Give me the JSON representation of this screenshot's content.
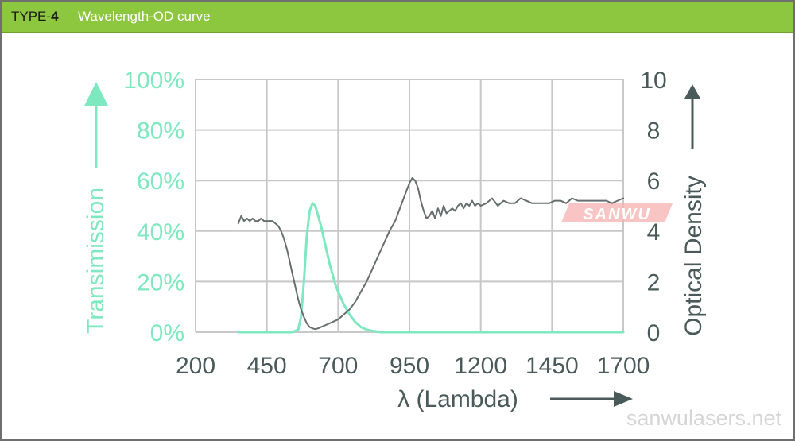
{
  "header": {
    "type_prefix": "TYPE-",
    "type_number": "4",
    "title": "Wavelength-OD curve"
  },
  "chart_data": {
    "type": "line",
    "xlabel": "λ (Lambda)",
    "ylabel_left": "Transimission",
    "ylabel_right": "Optical Density",
    "x_ticks": [
      "200",
      "450",
      "700",
      "950",
      "1200",
      "1450",
      "1700"
    ],
    "y_left_ticks": [
      "0%",
      "20%",
      "40%",
      "60%",
      "80%",
      "100%"
    ],
    "y_right_ticks": [
      "0",
      "2",
      "4",
      "6",
      "8",
      "10"
    ],
    "xlim": [
      200,
      1700
    ],
    "ylim_left": [
      0,
      100
    ],
    "ylim_right": [
      0,
      10
    ],
    "grid": true,
    "colors": {
      "transmission": "#7ee8c0",
      "od": "#666e6e",
      "grid": "#c8c8c8",
      "axis_text_left": "#7ee8c0",
      "axis_text_right": "#4a5a5a",
      "x_text": "#4a5a5a"
    },
    "series": [
      {
        "axis": "left",
        "x": [
          350,
          380,
          400,
          420,
          440,
          460,
          480,
          500,
          520,
          540,
          560,
          570,
          580,
          590,
          600,
          610,
          620,
          630,
          640,
          650,
          660,
          670,
          680,
          690,
          700,
          720,
          740,
          760,
          780,
          800,
          820,
          850,
          900,
          1000,
          1200,
          1400,
          1700
        ],
        "values": [
          0,
          0,
          0,
          0,
          0,
          0,
          0,
          0,
          0,
          0,
          1,
          6,
          20,
          38,
          48,
          51,
          50,
          46,
          42,
          37,
          32,
          27,
          23,
          19,
          16,
          11,
          7,
          4,
          2,
          1,
          0.5,
          0,
          0,
          0,
          0,
          0,
          0
        ]
      },
      {
        "axis": "right",
        "x": [
          350,
          360,
          370,
          380,
          390,
          400,
          410,
          420,
          430,
          440,
          450,
          460,
          470,
          480,
          490,
          500,
          510,
          520,
          530,
          540,
          550,
          560,
          570,
          580,
          590,
          600,
          610,
          620,
          630,
          640,
          650,
          660,
          670,
          680,
          690,
          700,
          720,
          740,
          760,
          780,
          800,
          820,
          840,
          860,
          880,
          900,
          910,
          920,
          930,
          940,
          950,
          960,
          970,
          980,
          990,
          1000,
          1010,
          1020,
          1030,
          1040,
          1050,
          1060,
          1070,
          1080,
          1090,
          1100,
          1110,
          1120,
          1130,
          1140,
          1150,
          1160,
          1170,
          1180,
          1190,
          1200,
          1220,
          1240,
          1260,
          1280,
          1300,
          1320,
          1340,
          1360,
          1380,
          1400,
          1420,
          1440,
          1460,
          1480,
          1500,
          1520,
          1540,
          1560,
          1580,
          1600,
          1620,
          1640,
          1660,
          1680,
          1700
        ],
        "values": [
          4.3,
          4.6,
          4.4,
          4.5,
          4.4,
          4.5,
          4.4,
          4.4,
          4.5,
          4.4,
          4.4,
          4.4,
          4.4,
          4.3,
          4.2,
          4.0,
          3.7,
          3.3,
          2.8,
          2.3,
          1.8,
          1.3,
          0.9,
          0.6,
          0.35,
          0.2,
          0.15,
          0.12,
          0.15,
          0.2,
          0.25,
          0.3,
          0.35,
          0.4,
          0.45,
          0.5,
          0.7,
          0.9,
          1.2,
          1.6,
          2.0,
          2.5,
          3.0,
          3.5,
          4.0,
          4.4,
          4.7,
          5.0,
          5.3,
          5.6,
          5.9,
          6.1,
          6.0,
          5.7,
          5.2,
          4.8,
          4.5,
          4.6,
          4.8,
          4.5,
          4.9,
          4.6,
          5.0,
          4.7,
          4.8,
          4.9,
          4.8,
          5.0,
          5.1,
          4.9,
          5.1,
          5.0,
          5.2,
          5.0,
          5.1,
          5.0,
          5.1,
          5.3,
          5.0,
          5.2,
          5.1,
          5.1,
          5.3,
          5.2,
          5.1,
          5.1,
          5.1,
          5.1,
          5.2,
          5.2,
          5.1,
          5.3,
          5.2,
          5.2,
          5.2,
          5.2,
          5.2,
          5.2,
          5.1,
          5.2,
          5.3
        ]
      }
    ]
  },
  "watermarks": {
    "brand": "SANWU",
    "site": "sanwulasers.net"
  }
}
